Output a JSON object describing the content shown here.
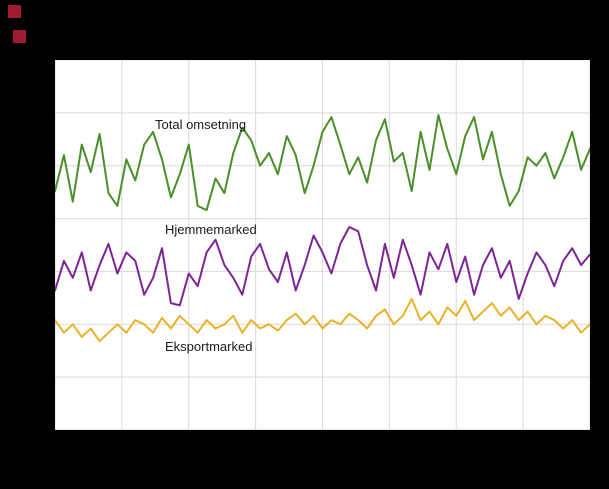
{
  "colors": {
    "background": "#000000",
    "plot_background": "#ffffff",
    "gridline": "#d9d9d9",
    "logo_red": "#9e1b32"
  },
  "chart_data": {
    "type": "line",
    "title": "",
    "xlabel": "",
    "ylabel": "",
    "ylim": [
      0,
      175
    ],
    "grid": {
      "v_lines": 9,
      "h_lines": 8,
      "on": true
    },
    "legend_position": "inline-labels",
    "series": [
      {
        "name": "Total omsetning",
        "color": "#4a8f29",
        "values": [
          113,
          130,
          108,
          135,
          122,
          140,
          112,
          106,
          128,
          118,
          135,
          141,
          128,
          110,
          121,
          135,
          106,
          104,
          119,
          112,
          131,
          143,
          137,
          125,
          131,
          121,
          139,
          130,
          112,
          125,
          141,
          148,
          135,
          121,
          129,
          117,
          137,
          147,
          127,
          131,
          113,
          141,
          123,
          149,
          133,
          121,
          139,
          148,
          128,
          141,
          121,
          106,
          113,
          129,
          125,
          131,
          119,
          129,
          141,
          123,
          133
        ]
      },
      {
        "name": "Hjemmemarked",
        "color": "#7d2594",
        "values": [
          66,
          80,
          72,
          84,
          66,
          78,
          88,
          74,
          84,
          80,
          64,
          72,
          86,
          60,
          59,
          74,
          68,
          84,
          90,
          78,
          72,
          64,
          82,
          88,
          76,
          70,
          84,
          66,
          78,
          92,
          84,
          74,
          88,
          96,
          94,
          78,
          66,
          88,
          72,
          90,
          78,
          64,
          84,
          76,
          88,
          70,
          82,
          64,
          78,
          86,
          72,
          80,
          62,
          74,
          84,
          78,
          68,
          80,
          86,
          78,
          83
        ]
      },
      {
        "name": "Eksportmarked",
        "color": "#e9b229",
        "values": [
          52,
          46,
          50,
          44,
          48,
          42,
          46,
          50,
          46,
          52,
          50,
          46,
          53,
          48,
          54,
          50,
          46,
          52,
          48,
          50,
          54,
          46,
          52,
          48,
          50,
          47,
          52,
          55,
          50,
          54,
          48,
          52,
          50,
          55,
          52,
          48,
          54,
          57,
          50,
          54,
          62,
          52,
          56,
          50,
          58,
          54,
          61,
          52,
          56,
          60,
          54,
          58,
          52,
          56,
          50,
          54,
          52,
          48,
          52,
          46,
          50
        ]
      }
    ]
  }
}
